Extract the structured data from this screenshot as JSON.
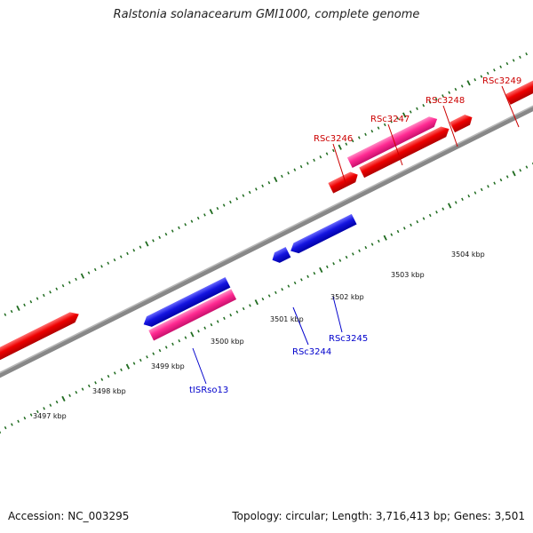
{
  "title": "Ralstonia solanacearum GMI1000, complete genome",
  "footer": {
    "accession": "Accession: NC_003295",
    "summary": "Topology: circular; Length: 3,716,413 bp; Genes: 3,501"
  },
  "colors": {
    "backbone": "#888888",
    "tick": "#1f6b1f",
    "forward_cds": "#e00000",
    "reverse_cds": "#1010d8",
    "rna_feature": "#ff1f8f",
    "forward_label": "#cc0000",
    "reverse_label": "#0000cc"
  },
  "scale_labels": [
    "3497 kbp",
    "3498 kbp",
    "3499 kbp",
    "3500 kbp",
    "3501 kbp",
    "3502 kbp",
    "3503 kbp",
    "3504 kbp"
  ],
  "gene_labels": {
    "forward": [
      "RSc3246",
      "RSc3247",
      "RSc3248",
      "RSc3249"
    ],
    "reverse": [
      "RSc3244",
      "RSc3245",
      "tISRso13"
    ]
  }
}
